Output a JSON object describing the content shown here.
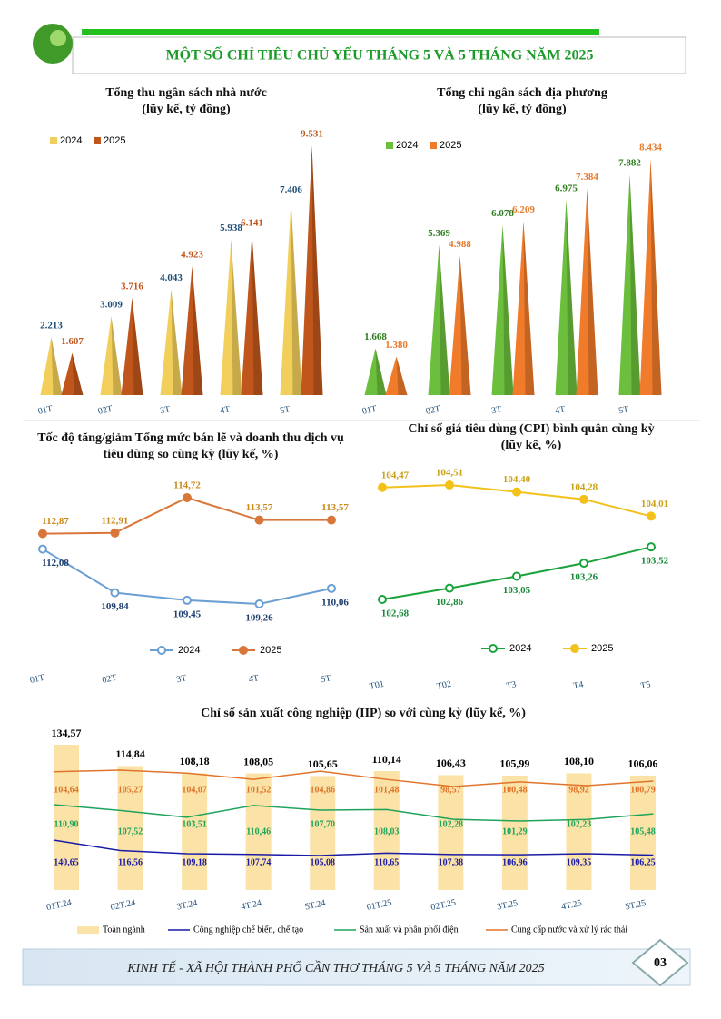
{
  "header": {
    "title": "MỘT SỐ CHỈ TIÊU CHỦ YẾU THÁNG 5 VÀ 5 THÁNG NĂM 2025"
  },
  "chart_data": [
    {
      "type": "bar",
      "title": "Tổng thu ngân sách nhà nước",
      "subtitle": "(lũy kế, tỷ đồng)",
      "categories": [
        "01T",
        "02T",
        "3T",
        "4T",
        "5T"
      ],
      "series": [
        {
          "name": "2024",
          "color": "#f2cf5b",
          "values": [
            2213,
            3009,
            4043,
            5938,
            7406
          ],
          "value_labels": [
            "2.213",
            "3.009",
            "4.043",
            "5.938",
            "7.406"
          ]
        },
        {
          "name": "2025",
          "color": "#c0561b",
          "values": [
            1607,
            3716,
            4923,
            6141,
            9531
          ],
          "value_labels": [
            "1.607",
            "3.716",
            "4.923",
            "6.141",
            "9.531"
          ]
        }
      ]
    },
    {
      "type": "bar",
      "title": "Tổng chi ngân sách địa phương",
      "subtitle": "(lũy kế, tỷ đồng)",
      "categories": [
        "01T",
        "02T",
        "3T",
        "4T",
        "5T"
      ],
      "series": [
        {
          "name": "2024",
          "color": "#6cbf3c",
          "values": [
            1668,
            5369,
            6078,
            6975,
            7882
          ],
          "value_labels": [
            "1.668",
            "5.369",
            "6.078",
            "6.975",
            "7.882"
          ]
        },
        {
          "name": "2025",
          "color": "#f07b2b",
          "values": [
            1380,
            4988,
            6209,
            7384,
            8434
          ],
          "value_labels": [
            "1.380",
            "4.988",
            "6.209",
            "7.384",
            "8.434"
          ]
        }
      ]
    },
    {
      "type": "line",
      "title": "Tốc độ tăng/giảm Tổng mức bán lẽ và doanh thu dịch vụ tiêu dùng so cùng kỳ (lũy kế, %)",
      "categories": [
        "01T",
        "02T",
        "3T",
        "4T",
        "5T"
      ],
      "series": [
        {
          "name": "2024",
          "color": "#6a9fd4",
          "values": [
            112.08,
            109.84,
            109.45,
            109.26,
            110.06
          ],
          "value_labels": [
            "112,08",
            "109,84",
            "109,45",
            "109,26",
            "110,06"
          ]
        },
        {
          "name": "2025",
          "color": "#d9773a",
          "values": [
            112.87,
            112.91,
            114.72,
            113.57,
            113.57
          ],
          "value_labels": [
            "112,87",
            "112,91",
            "114,72",
            "113,57",
            "113,57"
          ]
        }
      ]
    },
    {
      "type": "line",
      "title": "Chỉ số giá tiêu dùng (CPI) bình quân cùng kỳ",
      "subtitle": "(lũy kế, %)",
      "categories": [
        "T01",
        "T02",
        "T3",
        "T4",
        "T5"
      ],
      "series": [
        {
          "name": "2024",
          "color": "#1aa33c",
          "values": [
            102.68,
            102.86,
            103.05,
            103.26,
            103.52
          ],
          "value_labels": [
            "102,68",
            "102,86",
            "103,05",
            "103,26",
            "103,52"
          ]
        },
        {
          "name": "2025",
          "color": "#f2c21b",
          "values": [
            104.47,
            104.51,
            104.4,
            104.28,
            104.01
          ],
          "value_labels": [
            "104,47",
            "104,51",
            "104,40",
            "104,28",
            "104,01"
          ]
        }
      ]
    },
    {
      "type": "combo",
      "title": "Chỉ số sản xuất công nghiệp (IIP) so với cùng kỳ (lũy kế, %)",
      "categories": [
        "01T.24",
        "02T.24",
        "3T.24",
        "4T.24",
        "5T.24",
        "01T.25",
        "02T.25",
        "3T.25",
        "4T.25",
        "5T.25"
      ],
      "series": [
        {
          "name": "Toàn ngành",
          "type": "bar",
          "color": "#fbe3a8",
          "values": [
            134.57,
            114.84,
            108.18,
            108.05,
            105.65,
            110.14,
            106.43,
            105.99,
            108.1,
            106.06
          ],
          "value_labels": [
            "134,57",
            "114,84",
            "108,18",
            "108,05",
            "105,65",
            "110,14",
            "106,43",
            "105,99",
            "108,10",
            "106,06"
          ]
        },
        {
          "name": "Công nghiệp chế biến, chế tạo",
          "type": "line",
          "color": "#1a1aa6",
          "values": [
            140.65,
            116.56,
            109.18,
            107.74,
            105.08,
            110.65,
            107.38,
            106.96,
            109.35,
            106.25
          ],
          "value_labels": [
            "140,65",
            "116,56",
            "109,18",
            "107,74",
            "105,08",
            "110,65",
            "107,38",
            "106,96",
            "109,35",
            "106,25"
          ]
        },
        {
          "name": "Sản xuất và phân phối điện",
          "type": "line",
          "color": "#1fa35a",
          "values": [
            110.9,
            107.52,
            103.51,
            110.46,
            107.7,
            108.03,
            102.28,
            101.29,
            102.23,
            105.48
          ],
          "value_labels": [
            "110,90",
            "107,52",
            "103,51",
            "110,46",
            "107,70",
            "108,03",
            "102,28",
            "101,29",
            "102,23",
            "105,48"
          ]
        },
        {
          "name": "Cung cấp nước và xử lý rác thải",
          "type": "line",
          "color": "#e0742a",
          "values": [
            104.64,
            105.27,
            104.07,
            101.52,
            104.86,
            101.48,
            98.57,
            100.48,
            98.92,
            100.79
          ],
          "value_labels": [
            "104,64",
            "105,27",
            "104,07",
            "101,52",
            "104,86",
            "101,48",
            "98,57",
            "100,48",
            "98,92",
            "100,79"
          ]
        }
      ]
    }
  ],
  "footer": {
    "text": "KINH TẾ - XÃ HỘI THÀNH PHỐ CẦN THƠ THÁNG 5 VÀ 5 THÁNG NĂM 2025",
    "page": "03"
  }
}
